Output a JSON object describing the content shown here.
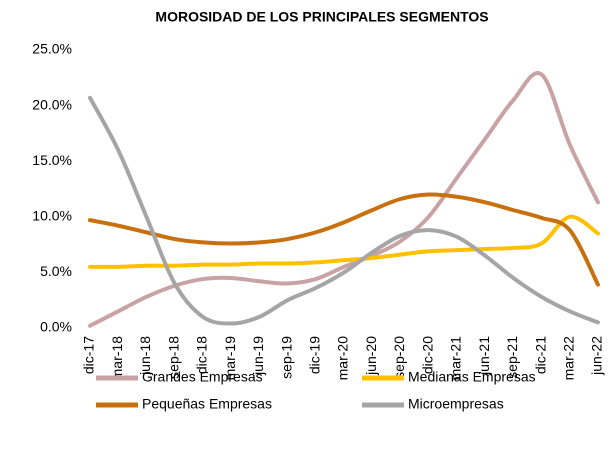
{
  "chart_data": {
    "type": "line",
    "title": "MOROSIDAD DE LOS PRINCIPALES SEGMENTOS",
    "categories": [
      "dic-17",
      "mar-18",
      "jun-18",
      "sep-18",
      "dic-18",
      "mar-19",
      "jun-19",
      "sep-19",
      "dic-19",
      "mar-20",
      "jun-20",
      "sep-20",
      "dic-20",
      "mar-21",
      "jun-21",
      "sep-21",
      "dic-21",
      "mar-22",
      "jun-22"
    ],
    "series": [
      {
        "name": "Grandes Empresas",
        "color": "#c9a3a3",
        "values": [
          0.2,
          1.5,
          2.8,
          3.8,
          4.4,
          4.5,
          4.2,
          4.0,
          4.4,
          5.5,
          6.5,
          7.8,
          10.0,
          13.5,
          17.0,
          20.5,
          22.8,
          16.5,
          11.3
        ]
      },
      {
        "name": "Medianas Empresas",
        "color": "#ffc000",
        "values": [
          5.5,
          5.5,
          5.6,
          5.6,
          5.7,
          5.7,
          5.8,
          5.8,
          5.9,
          6.1,
          6.3,
          6.6,
          6.9,
          7.0,
          7.1,
          7.2,
          7.6,
          10.0,
          8.5
        ]
      },
      {
        "name": "Pequeñas Empresas",
        "color": "#c8700f",
        "values": [
          9.7,
          9.2,
          8.6,
          8.0,
          7.7,
          7.6,
          7.7,
          8.0,
          8.6,
          9.5,
          10.6,
          11.6,
          12.0,
          11.8,
          11.3,
          10.6,
          9.9,
          8.8,
          3.9
        ]
      },
      {
        "name": "Microempresas",
        "color": "#a5a5a5",
        "values": [
          20.7,
          16.0,
          10.0,
          4.0,
          1.0,
          0.4,
          1.0,
          2.5,
          3.6,
          5.0,
          6.8,
          8.3,
          8.8,
          8.2,
          6.5,
          4.5,
          2.8,
          1.5,
          0.5
        ]
      }
    ],
    "ylim": [
      0,
      25
    ],
    "yticks": [
      {
        "value": 0,
        "label": "0.0%"
      },
      {
        "value": 5,
        "label": "5.0%"
      },
      {
        "value": 10,
        "label": "10.0%"
      },
      {
        "value": 15,
        "label": "15.0%"
      },
      {
        "value": 20,
        "label": "20.0%"
      },
      {
        "value": 25,
        "label": "25.0%"
      }
    ],
    "legend": "bottom"
  }
}
